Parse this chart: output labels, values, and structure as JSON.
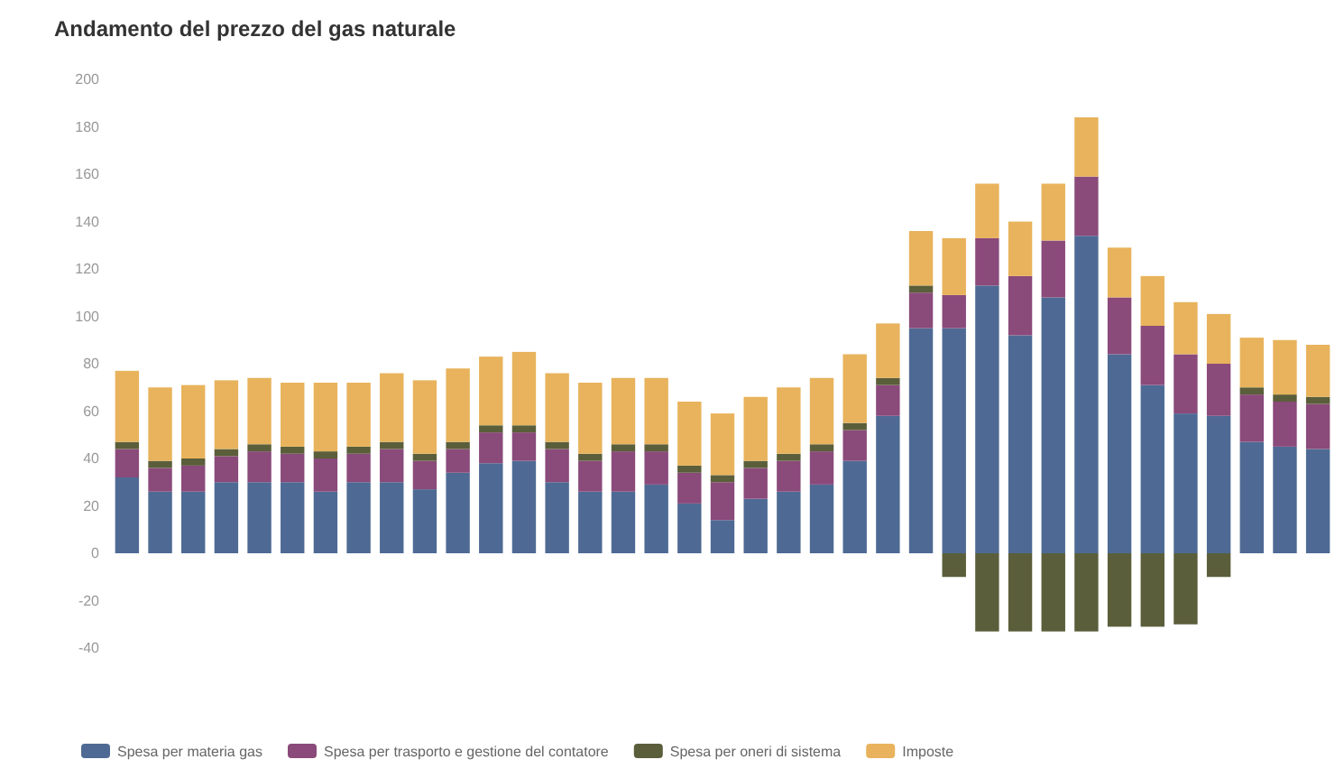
{
  "chart_data": {
    "type": "bar",
    "title": "Andamento del prezzo del gas naturale",
    "stacked": true,
    "legend": "bottom",
    "categories": [
      null,
      null,
      null,
      null,
      null,
      null,
      null,
      null,
      null,
      null,
      null,
      null,
      null,
      null,
      null,
      null,
      null,
      null,
      null,
      null,
      null,
      null,
      null,
      null,
      null,
      null,
      null,
      null,
      null,
      null,
      null,
      null,
      null,
      null,
      null,
      null,
      null
    ],
    "ylim": [
      -40,
      200
    ],
    "yticks": [
      -40,
      -20,
      0,
      20,
      40,
      60,
      80,
      100,
      120,
      140,
      160,
      180,
      200
    ],
    "series": [
      {
        "name": "Spesa per materia gas",
        "color": "#4e6a94",
        "values": [
          32,
          26,
          26,
          30,
          30,
          30,
          26,
          30,
          30,
          27,
          34,
          38,
          39,
          30,
          26,
          26,
          29,
          21,
          14,
          23,
          26,
          29,
          39,
          58,
          95,
          95,
          113,
          92,
          108,
          134,
          84,
          71,
          59,
          58,
          47,
          45,
          44
        ]
      },
      {
        "name": "Spesa per trasporto e gestione del contatore",
        "color": "#8a4a7a",
        "values": [
          12,
          10,
          11,
          11,
          13,
          12,
          14,
          12,
          14,
          12,
          10,
          13,
          12,
          14,
          13,
          17,
          14,
          13,
          16,
          13,
          13,
          14,
          13,
          13,
          15,
          14,
          20,
          25,
          24,
          25,
          24,
          25,
          25,
          22,
          20,
          19,
          19
        ]
      },
      {
        "name": "Spesa per oneri di sistema",
        "color": "#5b5e3a",
        "values": [
          3,
          3,
          3,
          3,
          3,
          3,
          3,
          3,
          3,
          3,
          3,
          3,
          3,
          3,
          3,
          3,
          3,
          3,
          3,
          3,
          3,
          3,
          3,
          3,
          3,
          -10,
          -33,
          -33,
          -33,
          -33,
          -31,
          -31,
          -30,
          -10,
          3,
          3,
          3
        ]
      },
      {
        "name": "Imposte",
        "color": "#e8b35c",
        "values": [
          30,
          31,
          31,
          29,
          28,
          27,
          29,
          27,
          29,
          31,
          31,
          29,
          31,
          29,
          30,
          28,
          28,
          27,
          26,
          27,
          28,
          28,
          29,
          23,
          23,
          24,
          23,
          23,
          24,
          25,
          21,
          21,
          22,
          21,
          21,
          23,
          22
        ]
      }
    ]
  }
}
